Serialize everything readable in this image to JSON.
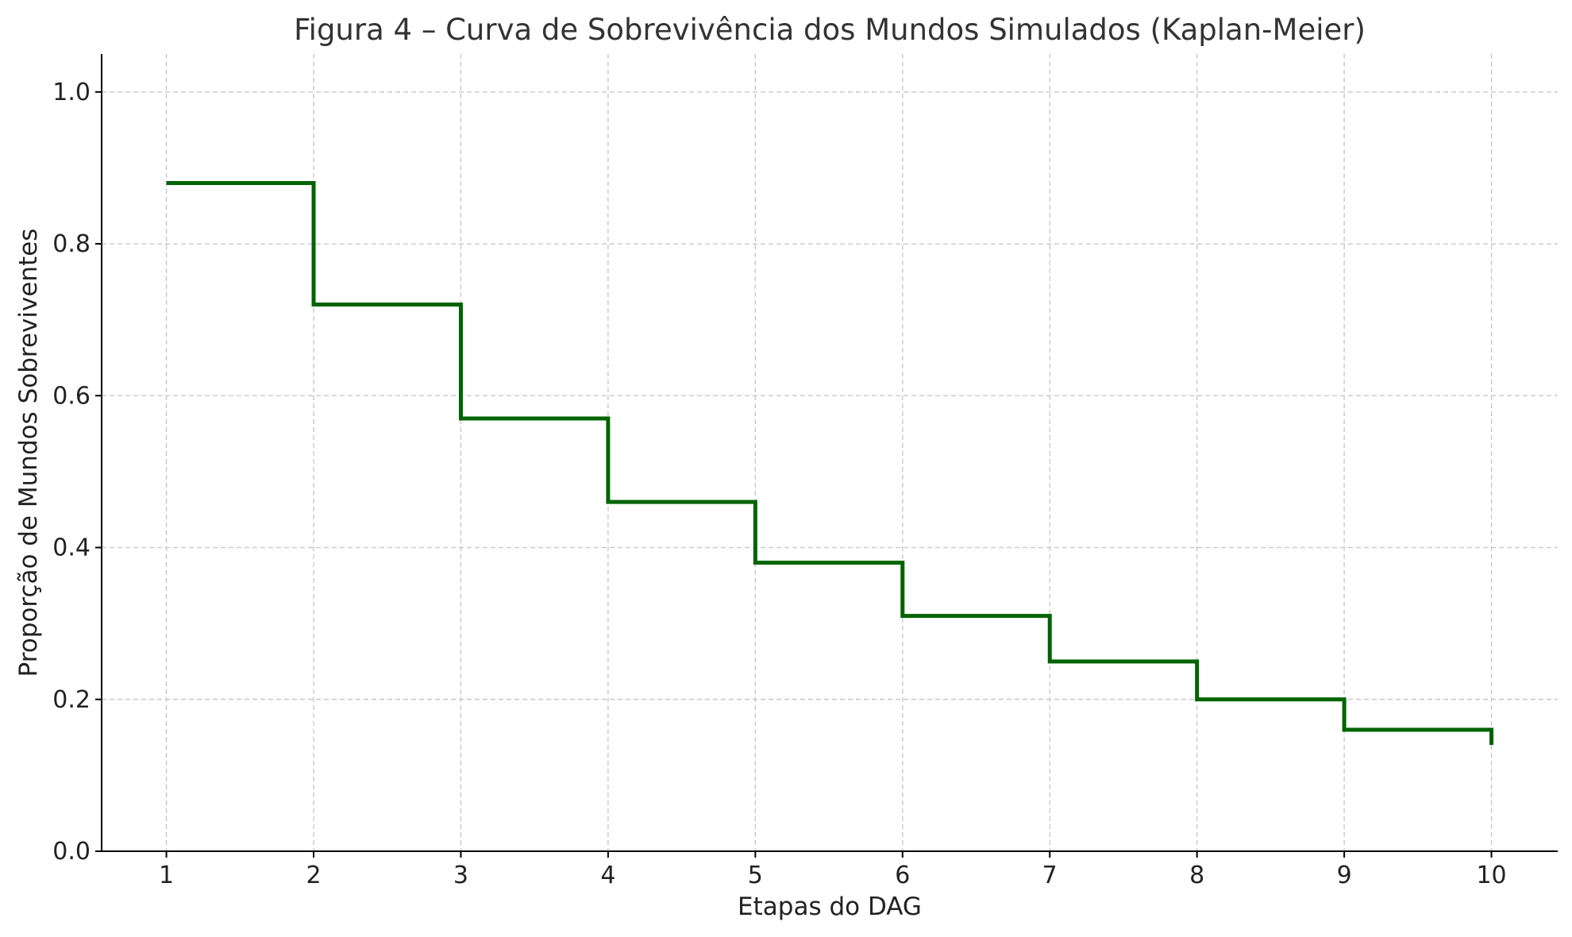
{
  "chart_data": {
    "type": "line",
    "step": "post",
    "title": "Figura 4 – Curva de Sobrevivência dos Mundos Simulados (Kaplan-Meier)",
    "xlabel": "Etapas do DAG",
    "ylabel": "Proporção de Mundos Sobreviventes",
    "xlim": [
      0.56,
      10.45
    ],
    "ylim": [
      0.0,
      1.05
    ],
    "xticks": [
      1,
      2,
      3,
      4,
      5,
      6,
      7,
      8,
      9,
      10
    ],
    "xtick_labels": [
      "1",
      "2",
      "3",
      "4",
      "5",
      "6",
      "7",
      "8",
      "9",
      "10"
    ],
    "yticks": [
      0.0,
      0.2,
      0.4,
      0.6,
      0.8,
      1.0
    ],
    "ytick_labels": [
      "0.0",
      "0.2",
      "0.4",
      "0.6",
      "0.8",
      "1.0"
    ],
    "grid": true,
    "series": [
      {
        "color": "#006400",
        "x": [
          1,
          2,
          3,
          4,
          5,
          6,
          7,
          8,
          9,
          10
        ],
        "y": [
          0.88,
          0.72,
          0.57,
          0.46,
          0.38,
          0.31,
          0.25,
          0.2,
          0.16,
          0.14
        ]
      }
    ]
  }
}
